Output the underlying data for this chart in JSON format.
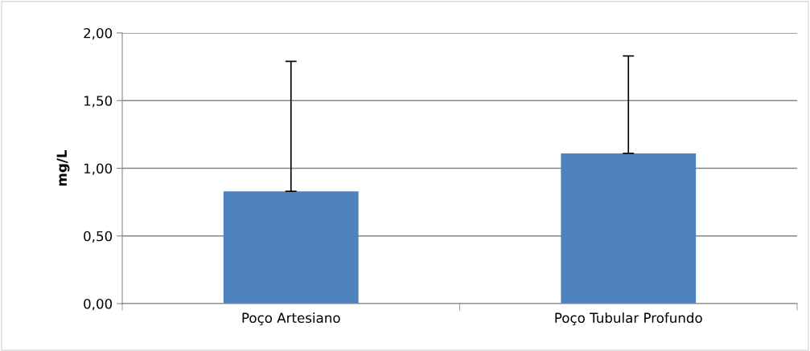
{
  "chart_data": {
    "type": "bar",
    "ylabel": "mg/L",
    "categories": [
      "Poço Artesiano",
      "Poço Tubular Profundo"
    ],
    "values": [
      0.83,
      1.11
    ],
    "errors": [
      [
        0.83,
        1.79
      ],
      [
        1.11,
        1.83
      ]
    ],
    "color": "#4f81bd",
    "ylim": [
      0,
      2
    ],
    "yticks": [
      {
        "value": 0,
        "label": "0,00"
      },
      {
        "value": 0.5,
        "label": "0,50"
      },
      {
        "value": 1,
        "label": "1,00"
      },
      {
        "value": 1.5,
        "label": "1,50"
      },
      {
        "value": 2,
        "label": "2,00"
      }
    ],
    "grid": "y"
  }
}
